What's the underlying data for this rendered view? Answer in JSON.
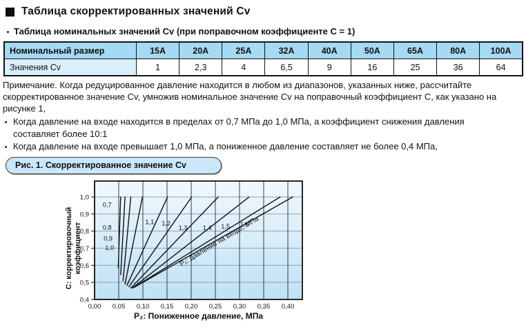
{
  "page": {
    "title": "Таблица скорректированных значений Cv",
    "subtitle": "Таблица номинальных значений Cv (при поправочном коэффициенте С = 1)",
    "note": "Примечание. Когда редуцированное давление находится в любом из диапазонов, указанных ниже, рассчитайте скорректированное значение Cv, умножив номинальное значение Cv на поправочный коэффициент С, как указано на рисунке 1,",
    "bullets": [
      "Когда давление на входе находится в пределах от 0,7 МПа до 1,0 МПа, а коэффициент снижения давления составляет более 10:1",
      "Когда давление на входе превышает 1,0 МПа, а пониженное давление составляет не более 0,4 МПа,"
    ],
    "figure_label": "Рис. 1. Скорректированное значение Cv"
  },
  "table": {
    "headers": [
      "Номинальный размер",
      "15A",
      "20A",
      "25A",
      "32A",
      "40A",
      "50A",
      "65A",
      "80A",
      "100A"
    ],
    "row_label": "Значения Cv",
    "values": [
      "1",
      "2,3",
      "4",
      "6,5",
      "9",
      "16",
      "25",
      "36",
      "64"
    ]
  },
  "colors": {
    "table_header_bg": "#a6d9f3",
    "table_rowlabel_bg": "#daeffb",
    "figure_label_bg": "#c9e7f8",
    "chart_bg_top": "#f1f8fe",
    "chart_bg_bottom": "#bfe1f5",
    "grid_h": "#8da2ac",
    "grid_v": "#2a2a2a",
    "curve": "#101010"
  },
  "chart_data": {
    "type": "line",
    "title": "Скорректированное значение Cv",
    "xlabel": "P₂: Пониженное давление, МПа",
    "ylabel": "C: корректировочный коэффициент",
    "ylabel_lines": [
      "C: корректировочный",
      "коэффициент"
    ],
    "xlim": [
      0,
      0.43
    ],
    "ylim": [
      0.4,
      1.093
    ],
    "grid": true,
    "legend": "inline-curve-labels",
    "x_ticks": [
      0,
      0.05,
      0.1,
      0.15,
      0.2,
      0.25,
      0.3,
      0.35,
      0.4
    ],
    "x_tick_labels": [
      "0,00",
      "0,05",
      "0,10",
      "0,15",
      "0,20",
      "0,25",
      "0,30",
      "0,35",
      "0,40"
    ],
    "y_ticks": [
      0.4,
      0.5,
      0.6,
      0.7,
      0.8,
      0.9,
      1.0
    ],
    "y_tick_labels": [
      "0,4",
      "0,5",
      "0,6",
      "0,7",
      "0,8",
      "0,9",
      "1,0"
    ],
    "series": [
      {
        "name": "0,7",
        "p1_mpa": 0.7,
        "points": [
          [
            0.049,
            0.585
          ],
          [
            0.054,
            1.0
          ]
        ],
        "label_at": [
          0.026,
          0.953
        ]
      },
      {
        "name": "0,8",
        "p1_mpa": 0.8,
        "points": [
          [
            0.054,
            0.545
          ],
          [
            0.063,
            1.0
          ]
        ],
        "label_at": [
          0.026,
          0.822
        ]
      },
      {
        "name": "0,9",
        "p1_mpa": 0.9,
        "points": [
          [
            0.059,
            0.51
          ],
          [
            0.075,
            1.0
          ]
        ],
        "label_at": [
          0.028,
          0.757
        ]
      },
      {
        "name": "1,0",
        "p1_mpa": 1.0,
        "points": [
          [
            0.063,
            0.49
          ],
          [
            0.099,
            1.0
          ]
        ],
        "label_at": [
          0.031,
          0.703
        ]
      },
      {
        "name": "1,1",
        "p1_mpa": 1.1,
        "points": [
          [
            0.067,
            0.482
          ],
          [
            0.151,
            1.0
          ]
        ],
        "label_at": [
          0.114,
          0.853
        ]
      },
      {
        "name": "1,2",
        "p1_mpa": 1.2,
        "points": [
          [
            0.071,
            0.474
          ],
          [
            0.201,
            1.0
          ]
        ],
        "label_at": [
          0.148,
          0.845
        ]
      },
      {
        "name": "1,3",
        "p1_mpa": 1.3,
        "points": [
          [
            0.075,
            0.467
          ],
          [
            0.256,
            1.0
          ]
        ],
        "label_at": [
          0.183,
          0.82
        ]
      },
      {
        "name": "1,4",
        "p1_mpa": 1.4,
        "points": [
          [
            0.078,
            0.467
          ],
          [
            0.32,
            1.0
          ]
        ],
        "label_at": [
          0.233,
          0.82
        ]
      },
      {
        "name": "1,5",
        "p1_mpa": 1.5,
        "points": [
          [
            0.081,
            0.47
          ],
          [
            0.384,
            1.0
          ]
        ],
        "label_at": [
          0.271,
          0.828
        ]
      },
      {
        "name": "1,6",
        "p1_mpa": 1.6,
        "points": [
          [
            0.084,
            0.474
          ],
          [
            0.41,
            1.0
          ]
        ],
        "label_at": [
          0.31,
          0.84
        ]
      }
    ],
    "annotation": {
      "text": "P₁: Давление на входе, МПа",
      "pos": [
        0.26,
        0.73
      ],
      "angle": -31
    }
  }
}
